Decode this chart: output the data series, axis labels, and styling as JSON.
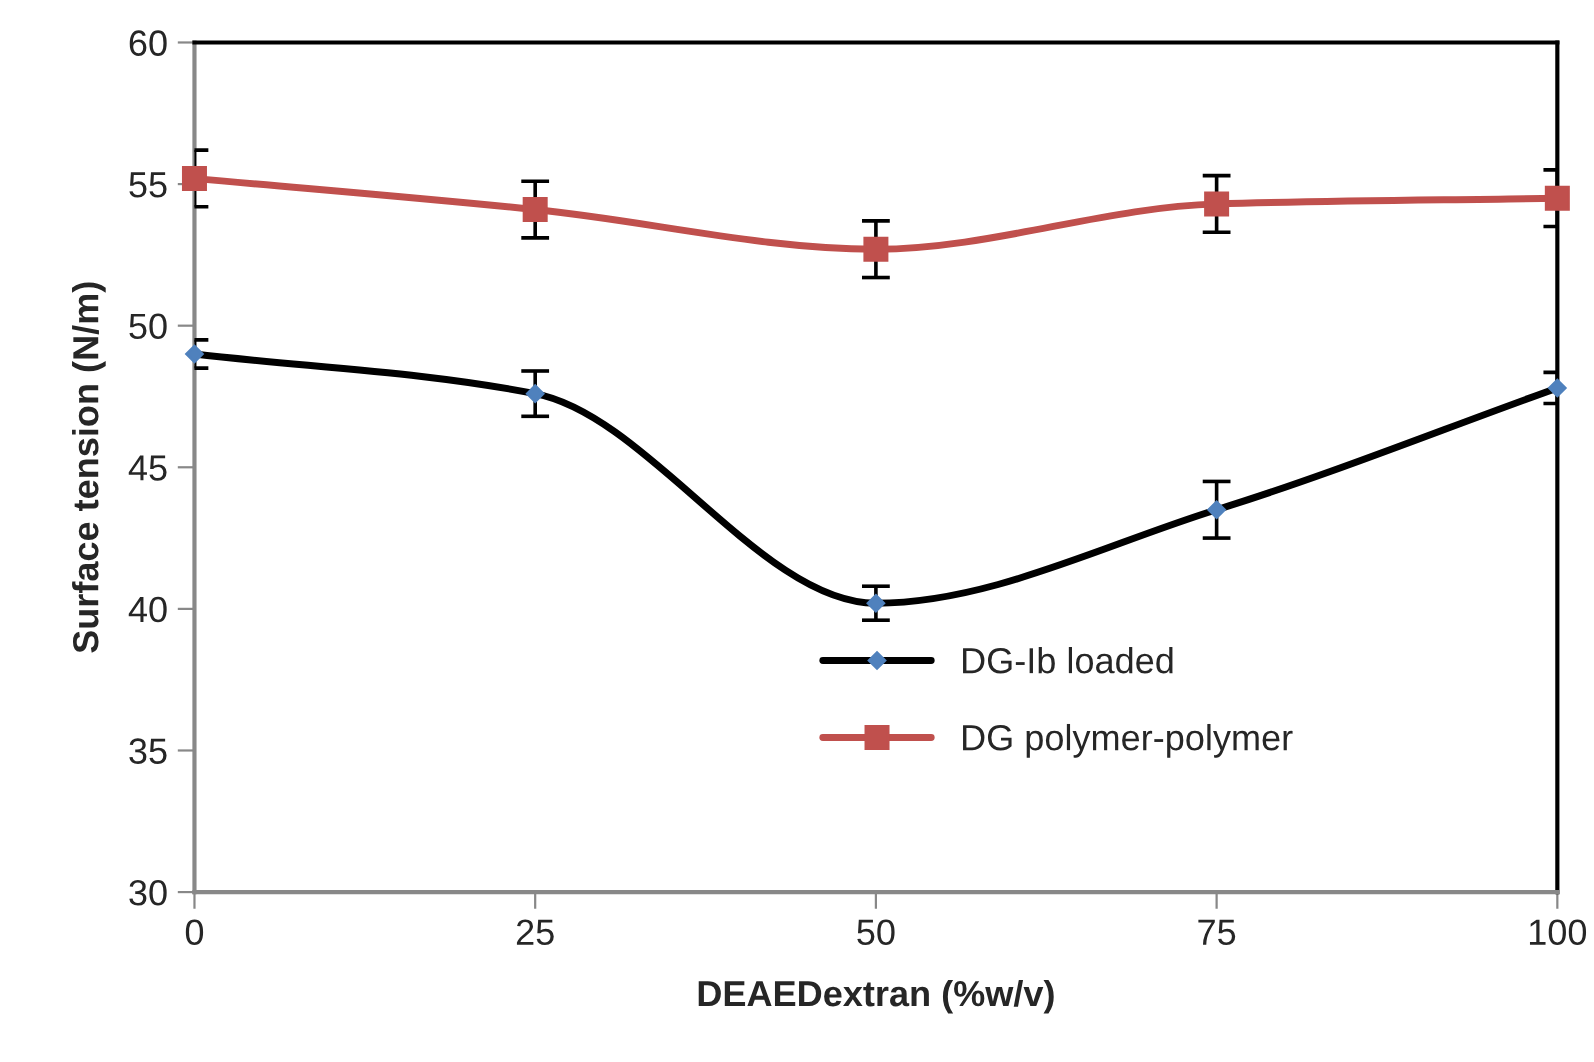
{
  "chart_data": {
    "type": "line",
    "xlabel": "DEAEDextran (%w/v)",
    "ylabel": "Surface tension (N/m)",
    "x": [
      0,
      25,
      50,
      75,
      100
    ],
    "series": [
      {
        "name": "DG-Ib loaded",
        "color": "#000000",
        "marker": "diamond",
        "values": [
          49.0,
          47.6,
          40.2,
          43.5,
          47.8
        ],
        "errors": [
          0.5,
          0.8,
          0.6,
          1.0,
          0.55
        ]
      },
      {
        "name": "DG polymer-polymer",
        "color": "#c0504d",
        "marker": "square",
        "values": [
          55.2,
          54.1,
          52.7,
          54.3,
          54.5
        ],
        "errors": [
          1.0,
          1.0,
          1.0,
          1.0,
          1.0
        ]
      }
    ],
    "xlim": [
      0,
      100
    ],
    "xticks": [
      0,
      25,
      50,
      75,
      100
    ],
    "ylim": [
      30,
      60
    ],
    "yticks": [
      30,
      35,
      40,
      45,
      50,
      55,
      60
    ],
    "grid": false,
    "legend": "bottom right",
    "line_style": "solid"
  }
}
